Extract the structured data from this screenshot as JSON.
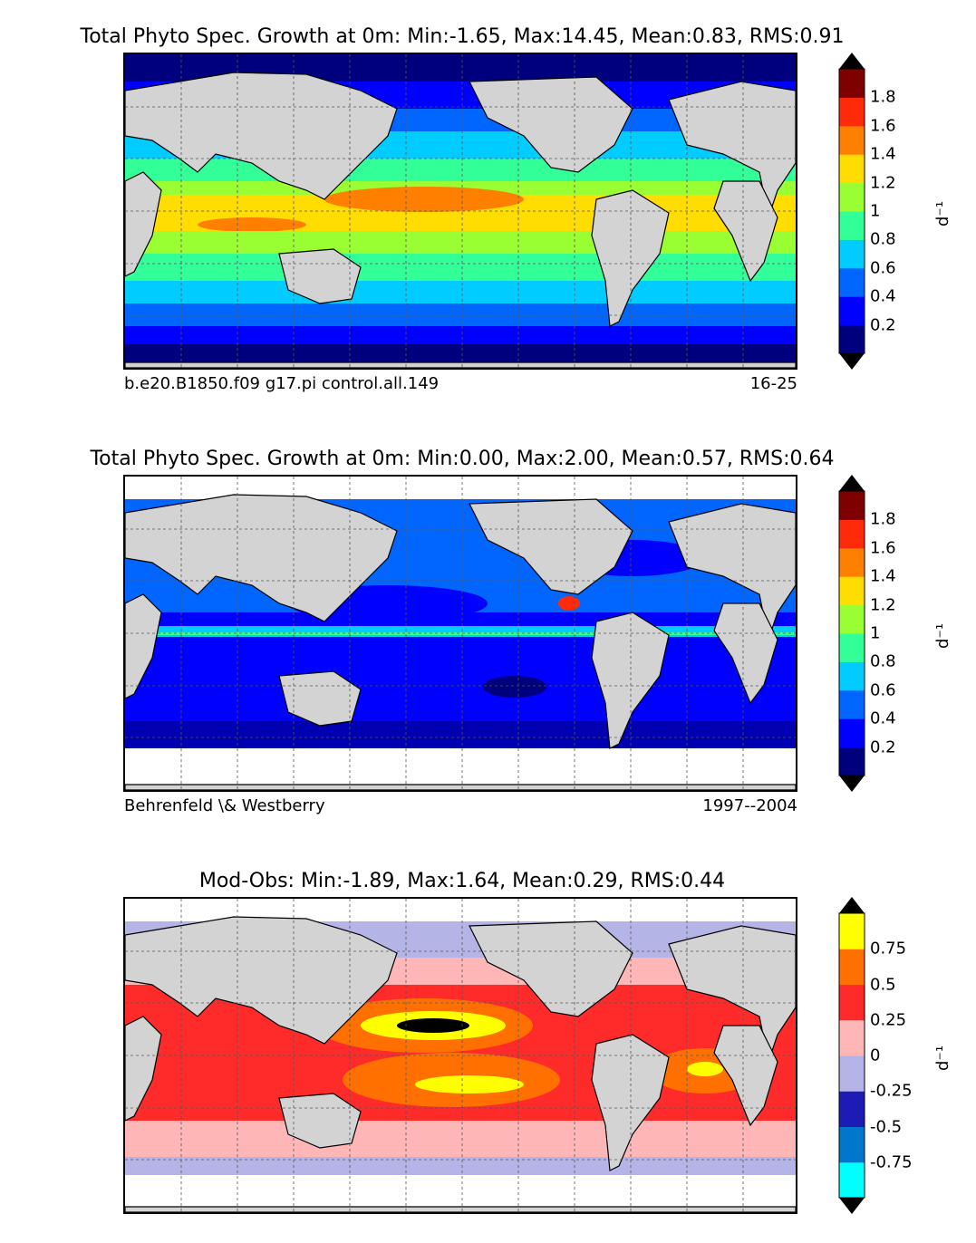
{
  "panels": [
    {
      "title": "Total Phyto Spec. Growth at 0m: Min:-1.65, Max:14.45, Mean:0.83, RMS:0.91",
      "left_label": "b.e20.B1850.f09 g17.pi control.all.149",
      "right_label": "16-25",
      "colorbar": {
        "colors": [
          "#00007f",
          "#0000ff",
          "#0066ff",
          "#00ccff",
          "#33ff99",
          "#99ff33",
          "#ffdd00",
          "#ff7f00",
          "#ff2a0a",
          "#7f0000"
        ],
        "ticks": [
          "0.2",
          "0.4",
          "0.6",
          "0.8",
          "1",
          "1.2",
          "1.4",
          "1.6",
          "1.8"
        ],
        "unit": "d⁻¹"
      }
    },
    {
      "title": "Total Phyto Spec. Growth at 0m: Min:0.00, Max:2.00, Mean:0.57, RMS:0.64",
      "left_label": "Behrenfeld \\& Westberry",
      "right_label": "1997--2004",
      "colorbar": {
        "colors": [
          "#00007f",
          "#0000ff",
          "#0066ff",
          "#00ccff",
          "#33ff99",
          "#99ff33",
          "#ffdd00",
          "#ff7f00",
          "#ff2a0a",
          "#7f0000"
        ],
        "ticks": [
          "0.2",
          "0.4",
          "0.6",
          "0.8",
          "1",
          "1.2",
          "1.4",
          "1.6",
          "1.8"
        ],
        "unit": "d⁻¹"
      }
    },
    {
      "title": "Mod-Obs: Min:-1.89, Max:1.64, Mean:0.29, RMS:0.44",
      "left_label": "",
      "right_label": "",
      "colorbar": {
        "colors": [
          "#00ffff",
          "#0077cc",
          "#1c1cb4",
          "#b4b4e6",
          "#ffb6b6",
          "#ff2a2a",
          "#ff7000",
          "#ffff00"
        ],
        "ticks": [
          "-0.75",
          "-0.5",
          "-0.25",
          "0",
          "0.25",
          "0.5",
          "0.75"
        ],
        "unit": "d⁻¹"
      }
    }
  ]
}
